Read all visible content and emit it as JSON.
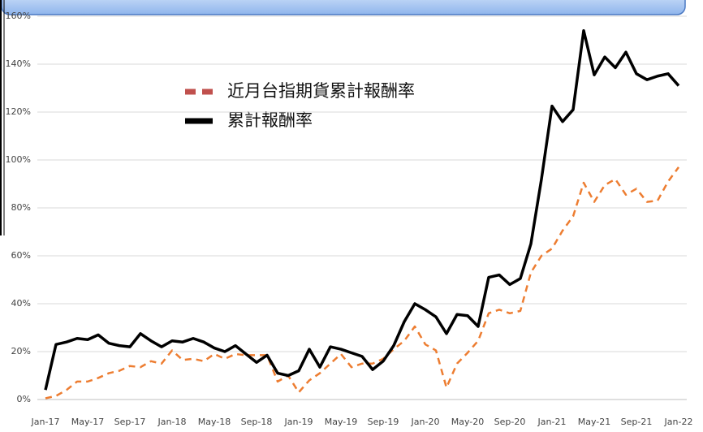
{
  "chart_data": {
    "type": "line",
    "categories": [
      "Jan-17",
      null,
      null,
      null,
      "May-17",
      null,
      null,
      null,
      "Sep-17",
      null,
      null,
      null,
      "Jan-18",
      null,
      null,
      null,
      "May-18",
      null,
      null,
      null,
      "Sep-18",
      null,
      null,
      null,
      "Jan-19",
      null,
      null,
      null,
      "May-19",
      null,
      null,
      null,
      "Sep-19",
      null,
      null,
      null,
      "Jan-20",
      null,
      null,
      null,
      "May-20",
      null,
      null,
      null,
      "Sep-20",
      null,
      null,
      null,
      "Jan-21",
      null,
      null,
      null,
      "May-21",
      null,
      null,
      null,
      "Sep-21",
      null,
      null,
      null,
      "Jan-22"
    ],
    "series": [
      {
        "name": "近月台指期貨累計報酬率",
        "color": "#ed7d31",
        "dash": true,
        "values": [
          0.5,
          1.5,
          4,
          7.5,
          7.5,
          9,
          11,
          12,
          14,
          13.5,
          16,
          15,
          20.5,
          16.5,
          17,
          16,
          19,
          17,
          19,
          18.5,
          18.5,
          18.5,
          7.5,
          10,
          3,
          8,
          11,
          15,
          19,
          13.5,
          15,
          15,
          17,
          21,
          24.5,
          30.5,
          23,
          20.5,
          5,
          15,
          19.5,
          24.5,
          36,
          37.5,
          36,
          37,
          53,
          60,
          63,
          70.5,
          76.5,
          90.5,
          82.5,
          89.5,
          92,
          85.5,
          88,
          82.5,
          83,
          91,
          97
        ]
      },
      {
        "name": "累計報酬率",
        "color": "#000000",
        "dash": false,
        "values": [
          4,
          23,
          24,
          25.5,
          25,
          27,
          23.5,
          22.5,
          22,
          27.5,
          24.5,
          22,
          24.5,
          24,
          25.5,
          24,
          21.5,
          20,
          22.5,
          19,
          15.5,
          18.5,
          11,
          10,
          12,
          21,
          13.5,
          22,
          21,
          19.5,
          18,
          12.5,
          16,
          22.5,
          32.5,
          40,
          37.5,
          34.5,
          27.5,
          35.5,
          35,
          30.5,
          51,
          52,
          48,
          50.5,
          65,
          92,
          122.5,
          116,
          121,
          154,
          135.5,
          143,
          138.5,
          145,
          136,
          133.5,
          135,
          136,
          131
        ]
      }
    ],
    "ylim": [
      0,
      160
    ],
    "yticks": [
      {
        "value": 0,
        "label": "0%"
      },
      {
        "value": 20,
        "label": "20%"
      },
      {
        "value": 40,
        "label": "40%"
      },
      {
        "value": 60,
        "label": "60%"
      },
      {
        "value": 80,
        "label": "80%"
      },
      {
        "value": 100,
        "label": "100%"
      },
      {
        "value": 120,
        "label": "120%"
      },
      {
        "value": 140,
        "label": "140%"
      },
      {
        "value": 160,
        "label": "160%"
      }
    ],
    "grid": true
  }
}
